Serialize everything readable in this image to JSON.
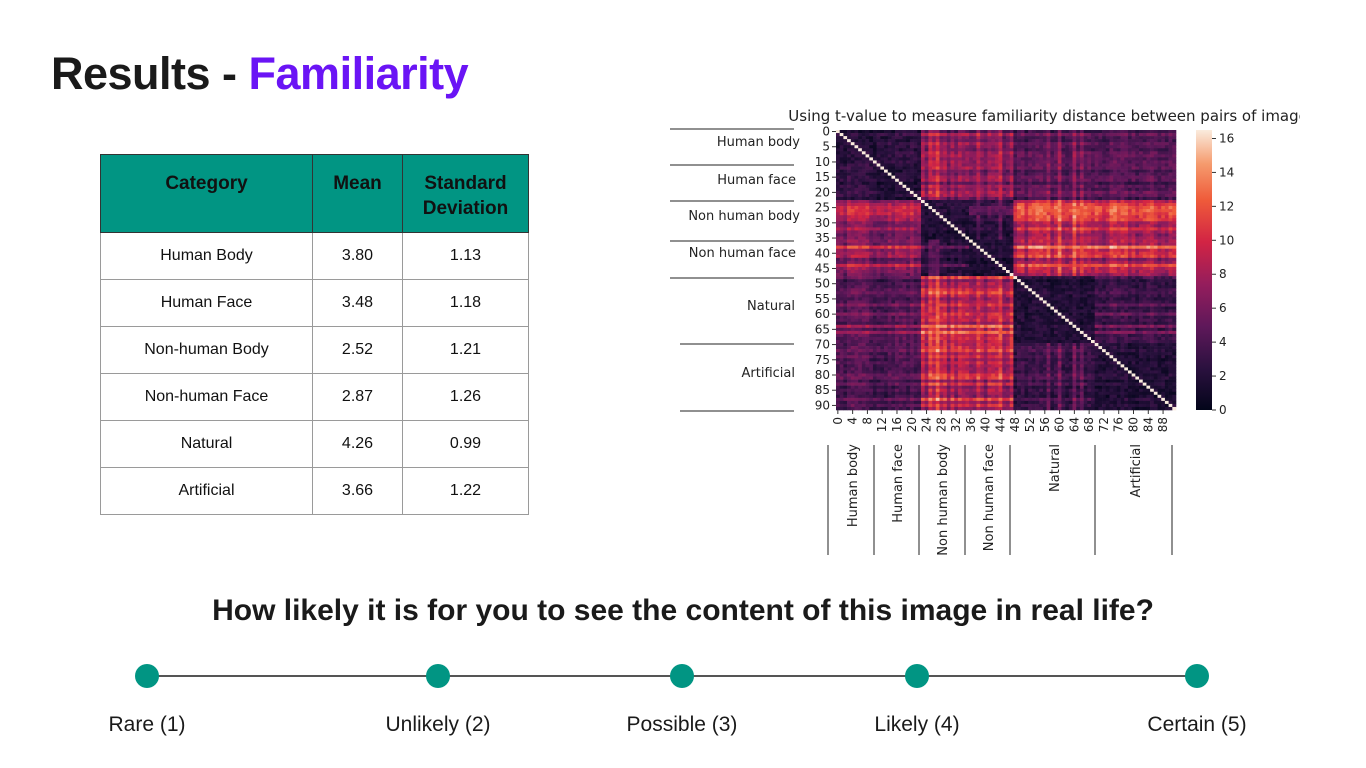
{
  "title": {
    "prefix": "Results - ",
    "accent": "Familiarity"
  },
  "table": {
    "headers": [
      "Category",
      "Mean",
      "Standard Deviation"
    ],
    "rows": [
      [
        "Human Body",
        "3.80",
        "1.13"
      ],
      [
        "Human Face",
        "3.48",
        "1.18"
      ],
      [
        "Non-human Body",
        "2.52",
        "1.21"
      ],
      [
        "Non-human Face",
        "2.87",
        "1.26"
      ],
      [
        "Natural",
        "4.26",
        "0.99"
      ],
      [
        "Artificial",
        "3.66",
        "1.22"
      ]
    ],
    "header_color": "#019583"
  },
  "chart_data": {
    "type": "heatmap",
    "title": "Using t-value to measure familiarity distance between pairs of images",
    "y_ticks": [
      0,
      5,
      10,
      15,
      20,
      25,
      30,
      35,
      40,
      45,
      50,
      55,
      60,
      65,
      70,
      75,
      80,
      85,
      90
    ],
    "x_ticks": [
      0,
      4,
      8,
      12,
      16,
      20,
      24,
      28,
      32,
      36,
      40,
      44,
      48,
      52,
      56,
      60,
      64,
      68,
      72,
      76,
      80,
      84,
      88
    ],
    "n": 92,
    "y_groups": [
      {
        "label": "Human body",
        "start": 0,
        "end": 11
      },
      {
        "label": "Human face",
        "start": 11,
        "end": 23
      },
      {
        "label": "Non human body",
        "start": 23,
        "end": 36
      },
      {
        "label": "Non human face",
        "start": 36,
        "end": 48
      },
      {
        "label": "Natural",
        "start": 48,
        "end": 70
      },
      {
        "label": "Artificial",
        "start": 70,
        "end": 92
      }
    ],
    "x_groups": [
      {
        "label": "Human body",
        "start": 0,
        "end": 11
      },
      {
        "label": "Human face",
        "start": 11,
        "end": 23
      },
      {
        "label": "Non human body",
        "start": 23,
        "end": 36
      },
      {
        "label": "Non human face",
        "start": 36,
        "end": 48
      },
      {
        "label": "Natural",
        "start": 48,
        "end": 70
      },
      {
        "label": "Artificial",
        "start": 70,
        "end": 92
      }
    ],
    "colorbar_ticks": [
      0,
      2,
      4,
      6,
      8,
      10,
      12,
      14,
      16
    ],
    "value_range": [
      0,
      16.5
    ],
    "colormap": "rocket"
  },
  "question": "How likely it is for you to see the content of this image in real life?",
  "scale": {
    "color": "#019583",
    "points": [
      {
        "label": "Rare (1)",
        "value": 1
      },
      {
        "label": "Unlikely (2)",
        "value": 2
      },
      {
        "label": "Possible (3)",
        "value": 3
      },
      {
        "label": "Likely (4)",
        "value": 4
      },
      {
        "label": "Certain (5)",
        "value": 5
      }
    ]
  }
}
